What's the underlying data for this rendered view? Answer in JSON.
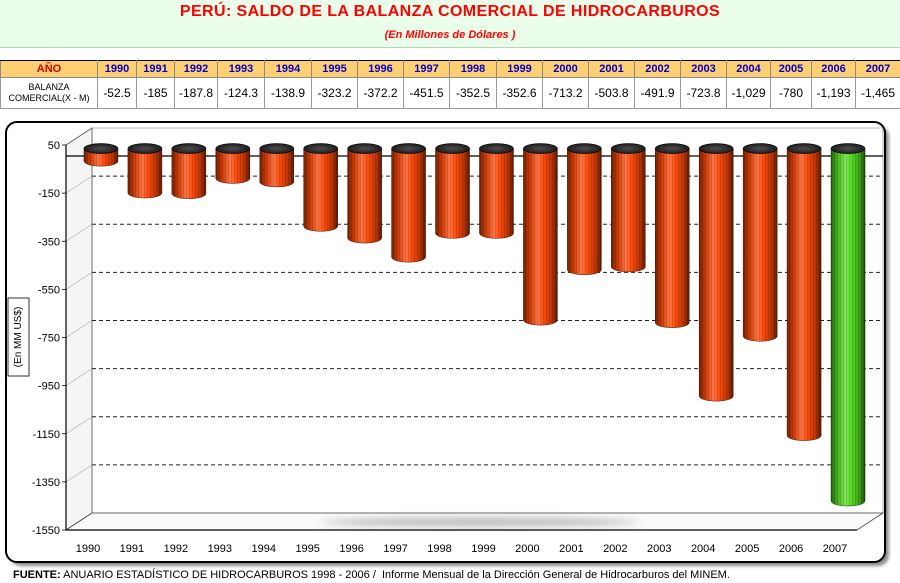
{
  "chart_data": {
    "type": "bar",
    "title": "PERÚ: SALDO DE LA BALANZA COMERCIAL DE HIDROCARBUROS",
    "subtitle": "(En Millones de Dólares )",
    "xlabel": "",
    "ylabel": "(En MM US$)",
    "categories": [
      "1990",
      "1991",
      "1992",
      "1993",
      "1994",
      "1995",
      "1996",
      "1997",
      "1998",
      "1999",
      "2000",
      "2001",
      "2002",
      "2003",
      "2004",
      "2005",
      "2006",
      "2007"
    ],
    "values": [
      -52.5,
      -185,
      -187.8,
      -124.3,
      -138.9,
      -323.2,
      -372.2,
      -451.5,
      -352.5,
      -352.6,
      -713.2,
      -503.8,
      -491.9,
      -723.8,
      -1029,
      -780,
      -1193,
      -1465
    ],
    "ylim": [
      -1550,
      50
    ],
    "yticks": [
      50,
      -150,
      -350,
      -550,
      -750,
      -950,
      -1150,
      -1350,
      -1550
    ],
    "grid": true,
    "bar_colors": [
      "#ff4a0a",
      "#ff4a0a",
      "#ff4a0a",
      "#ff4a0a",
      "#ff4a0a",
      "#ff4a0a",
      "#ff4a0a",
      "#ff4a0a",
      "#ff4a0a",
      "#ff4a0a",
      "#ff4a0a",
      "#ff4a0a",
      "#ff4a0a",
      "#ff4a0a",
      "#ff4a0a",
      "#ff4a0a",
      "#ff4a0a",
      "#55dd22"
    ]
  },
  "table": {
    "header_label": "AÑO",
    "row_label_lines": [
      "BALANZA",
      "COMERCIAL(X - M)"
    ],
    "years": [
      "1990",
      "1991",
      "1992",
      "1993",
      "1994",
      "1995",
      "1996",
      "1997",
      "1998",
      "1999",
      "2000",
      "2001",
      "2002",
      "2003",
      "2004",
      "2005",
      "2006",
      "2007"
    ],
    "values_display": [
      "-52.5",
      "-185",
      "-187.8",
      "-124.3",
      "-138.9",
      "-323.2",
      "-372.2",
      "-451.5",
      "-352.5",
      "-352.6",
      "-713.2",
      "-503.8",
      "-491.9",
      "-723.8",
      "-1,029",
      "-780",
      "-1,193",
      "-1,465"
    ]
  },
  "footer": {
    "label": "FUENTE:",
    "text": "ANUARIO ESTADÍSTICO DE HIDROCARBUROS 1998 - 2006 /  Informe Mensual de la Dirección General de Hidrocarburos del MINEM."
  }
}
